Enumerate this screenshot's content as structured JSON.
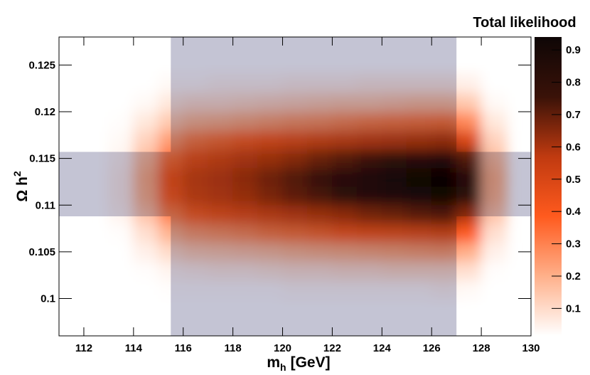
{
  "chart_data": {
    "type": "heatmap",
    "xlabel": [
      "m",
      "h",
      "[GeV]"
    ],
    "ylabel": [
      "Ω h",
      "2"
    ],
    "colorbar_title": "Total likelihood",
    "xlim": [
      111,
      130
    ],
    "xticks": [
      112,
      114,
      116,
      118,
      120,
      122,
      124,
      126,
      128,
      130
    ],
    "ylim": [
      0.096,
      0.128
    ],
    "yticks": [
      0.1,
      0.105,
      0.11,
      0.115,
      0.12,
      0.125
    ],
    "zlim": [
      0.015,
      0.94
    ],
    "zticks": [
      0.1,
      0.2,
      0.3,
      0.4,
      0.5,
      0.6,
      0.7,
      0.8,
      0.9
    ],
    "colormap": [
      "#ffffff",
      "#ffb08a",
      "#ff5a1e",
      "#c03a10",
      "#3a1208",
      "#0e0606"
    ],
    "band_color": "#c4c4d4",
    "x_band": [
      115.5,
      127
    ],
    "y_band": [
      0.1088,
      0.1157
    ],
    "x_edges": [
      113,
      114,
      115,
      116,
      117,
      118,
      119,
      120,
      121,
      122,
      123,
      124,
      125,
      126,
      127,
      128,
      129
    ],
    "y_edges": [
      0.098,
      0.1,
      0.102,
      0.104,
      0.106,
      0.108,
      0.11,
      0.112,
      0.114,
      0.116,
      0.118,
      0.12,
      0.122,
      0.124
    ],
    "z": [
      [
        0,
        0,
        0,
        0.01,
        0.01,
        0.01,
        0.01,
        0.01,
        0.01,
        0.01,
        0.01,
        0.01,
        0.01,
        0.01,
        0.01,
        0
      ],
      [
        0,
        0.01,
        0.02,
        0.02,
        0.02,
        0.02,
        0.02,
        0.03,
        0.03,
        0.03,
        0.03,
        0.03,
        0.03,
        0.04,
        0.03,
        0.01
      ],
      [
        0.01,
        0.02,
        0.04,
        0.05,
        0.06,
        0.06,
        0.07,
        0.08,
        0.08,
        0.09,
        0.09,
        0.1,
        0.1,
        0.1,
        0.09,
        0.02
      ],
      [
        0.01,
        0.05,
        0.1,
        0.13,
        0.14,
        0.15,
        0.16,
        0.18,
        0.19,
        0.2,
        0.21,
        0.22,
        0.23,
        0.24,
        0.2,
        0.05
      ],
      [
        0.02,
        0.09,
        0.19,
        0.24,
        0.26,
        0.28,
        0.31,
        0.33,
        0.35,
        0.38,
        0.4,
        0.41,
        0.43,
        0.45,
        0.38,
        0.09
      ],
      [
        0.04,
        0.15,
        0.3,
        0.37,
        0.41,
        0.44,
        0.48,
        0.52,
        0.56,
        0.59,
        0.63,
        0.65,
        0.68,
        0.7,
        0.59,
        0.15
      ],
      [
        0.05,
        0.19,
        0.38,
        0.48,
        0.52,
        0.57,
        0.62,
        0.67,
        0.71,
        0.76,
        0.81,
        0.84,
        0.87,
        0.9,
        0.76,
        0.19
      ],
      [
        0.05,
        0.2,
        0.4,
        0.5,
        0.54,
        0.59,
        0.64,
        0.69,
        0.74,
        0.79,
        0.84,
        0.87,
        0.91,
        0.94,
        0.79,
        0.2
      ],
      [
        0.04,
        0.17,
        0.34,
        0.43,
        0.47,
        0.52,
        0.56,
        0.6,
        0.65,
        0.69,
        0.73,
        0.76,
        0.79,
        0.82,
        0.69,
        0.17
      ],
      [
        0.03,
        0.12,
        0.24,
        0.31,
        0.34,
        0.37,
        0.4,
        0.43,
        0.46,
        0.49,
        0.52,
        0.54,
        0.56,
        0.58,
        0.49,
        0.12
      ],
      [
        0.02,
        0.07,
        0.14,
        0.18,
        0.19,
        0.21,
        0.23,
        0.25,
        0.26,
        0.28,
        0.3,
        0.31,
        0.32,
        0.33,
        0.28,
        0.07
      ],
      [
        0.01,
        0.03,
        0.07,
        0.09,
        0.09,
        0.1,
        0.11,
        0.12,
        0.13,
        0.14,
        0.14,
        0.15,
        0.16,
        0.16,
        0.14,
        0.03
      ],
      [
        0,
        0.01,
        0.03,
        0.03,
        0.04,
        0.04,
        0.04,
        0.05,
        0.05,
        0.05,
        0.06,
        0.06,
        0.06,
        0.06,
        0.05,
        0.01
      ]
    ]
  }
}
